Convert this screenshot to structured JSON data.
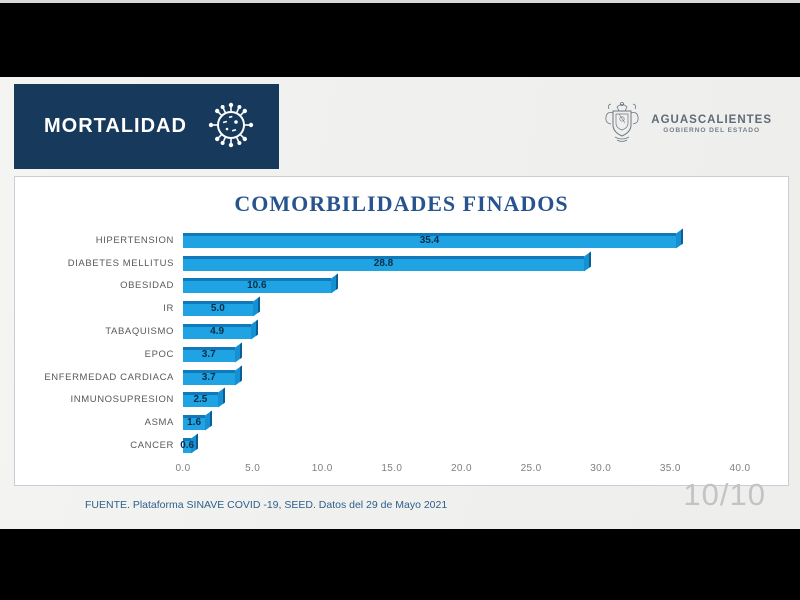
{
  "header": {
    "title": "MORTALIDAD"
  },
  "logo": {
    "name": "AGUASCALIENTES",
    "subtitle": "GOBIERNO DEL ESTADO"
  },
  "chart_data": {
    "type": "bar",
    "orientation": "horizontal",
    "title": "COMORBILIDADES FINADOS",
    "categories": [
      "HIPERTENSION",
      "DIABETES MELLITUS",
      "OBESIDAD",
      "IR",
      "TABAQUISMO",
      "EPOC",
      "ENFERMEDAD CARDIACA",
      "INMUNOSUPRESION",
      "ASMA",
      "CANCER"
    ],
    "values": [
      35.4,
      28.8,
      10.6,
      5.0,
      4.9,
      3.7,
      3.7,
      2.5,
      1.6,
      0.6
    ],
    "xlim": [
      0,
      40
    ],
    "xtick_labels": [
      "0.0",
      "5.0",
      "10.0",
      "15.0",
      "20.0",
      "25.0",
      "30.0",
      "35.0",
      "40.0"
    ],
    "grid": false,
    "legend_position": "none",
    "bar_color": "#1fa3e3",
    "bar_edge_color": "#0f79bc",
    "value_label_color": "#0c2d47"
  },
  "footer": {
    "source": "FUENTE. Plataforma SINAVE COVID -19, SEED. Datos del 29 de Mayo 2021"
  },
  "pagination": {
    "current": "10/10"
  }
}
